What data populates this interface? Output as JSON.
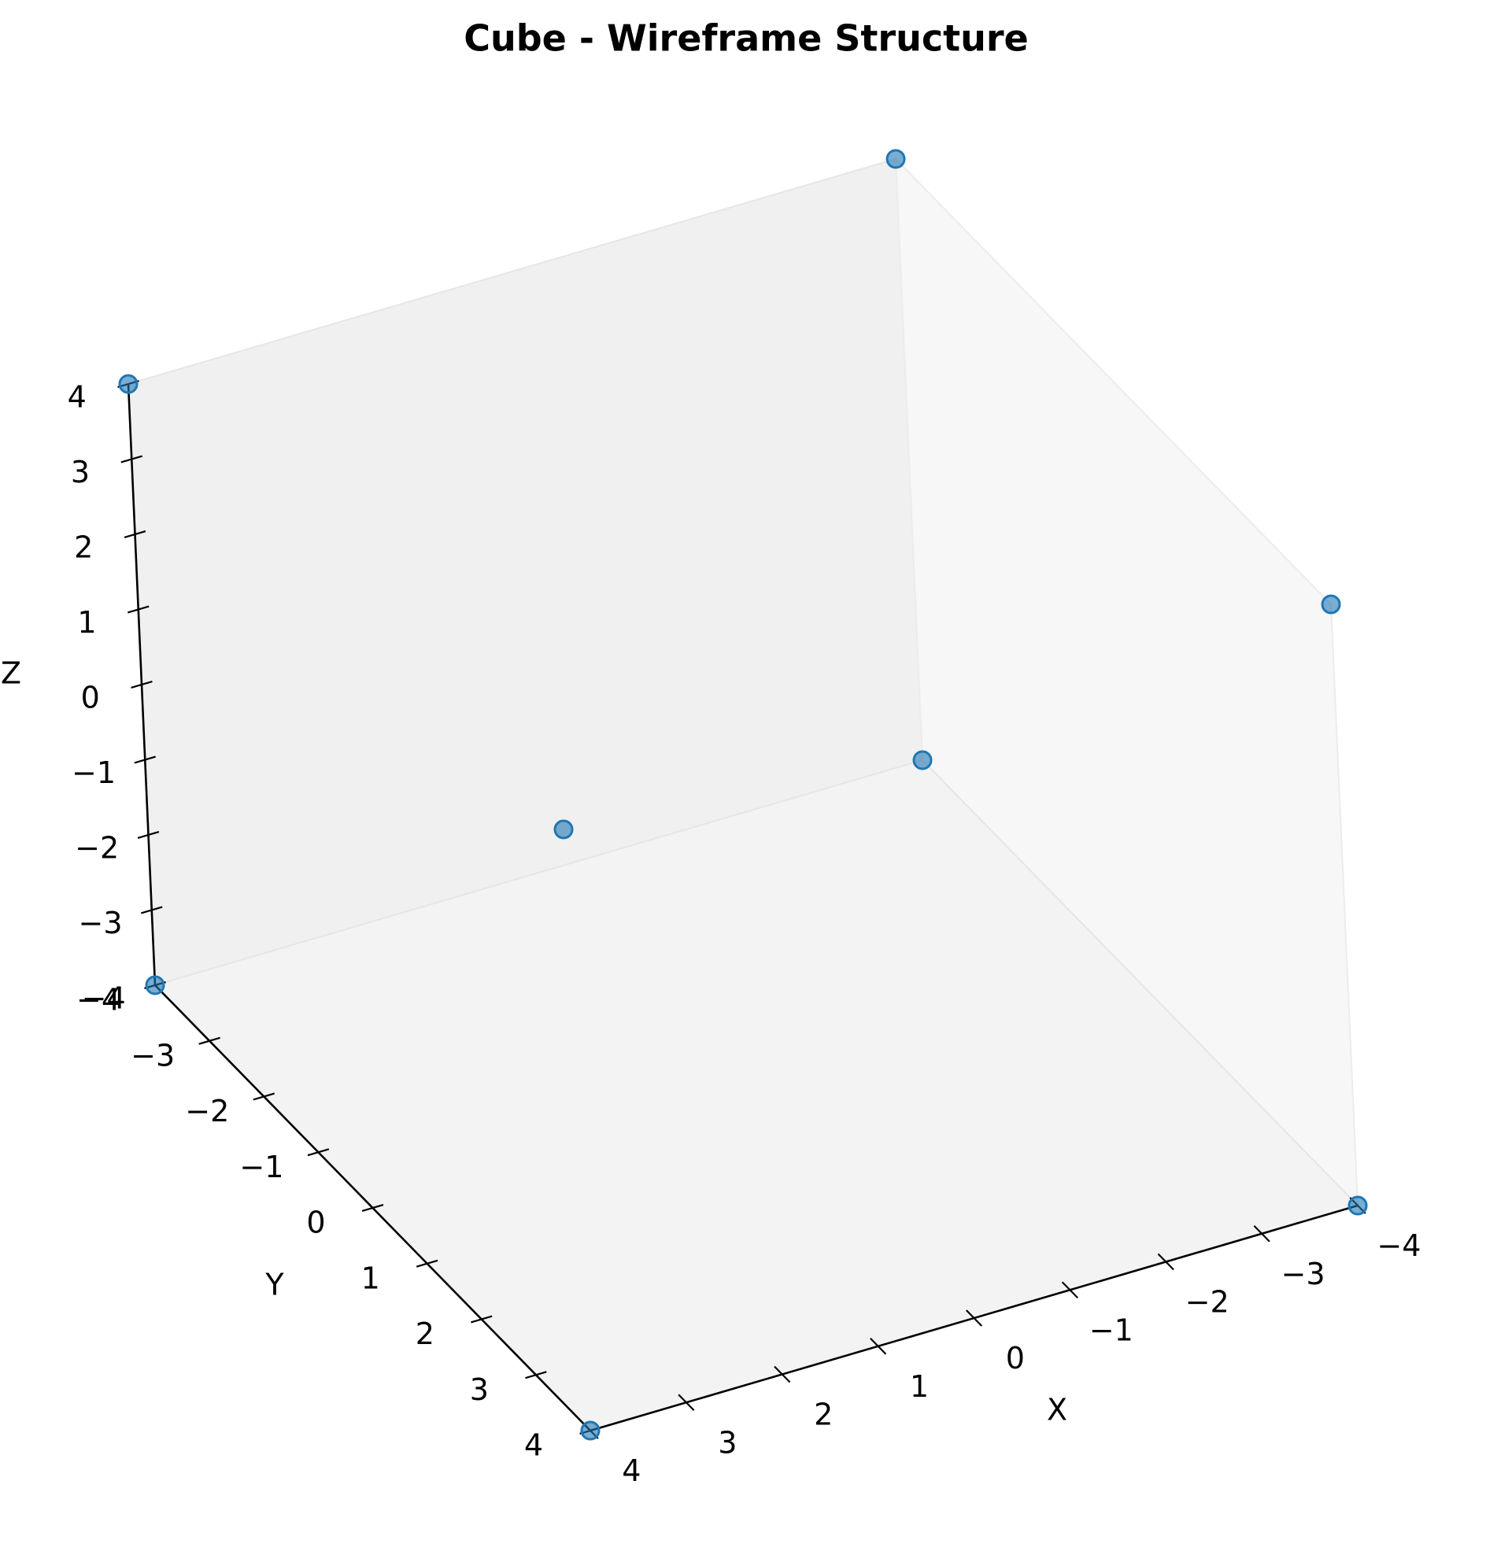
{
  "chart_data": {
    "type": "scatter",
    "projection": "3d",
    "title": "Cube - Wireframe Structure",
    "xlabel": "X",
    "ylabel": "Y",
    "zlabel": "Z",
    "xlim": [
      -4,
      4
    ],
    "ylim": [
      -4,
      4
    ],
    "zlim": [
      -4,
      4
    ],
    "xticks": [
      -4,
      -3,
      -2,
      -1,
      0,
      1,
      2,
      3,
      4
    ],
    "yticks": [
      -4,
      -3,
      -2,
      -1,
      0,
      1,
      2,
      3,
      4
    ],
    "zticks": [
      -4,
      -3,
      -2,
      -1,
      0,
      1,
      2,
      3,
      4
    ],
    "xtick_labels": [
      "−4",
      "−3",
      "−2",
      "−1",
      "0",
      "1",
      "2",
      "3",
      "4"
    ],
    "ytick_labels": [
      "−4",
      "−3",
      "−2",
      "−1",
      "0",
      "1",
      "2",
      "3",
      "4"
    ],
    "ztick_labels": [
      "−4",
      "−3",
      "−2",
      "−1",
      "0",
      "1",
      "2",
      "3",
      "4"
    ],
    "grid": false,
    "marker_color": "#1f77b4",
    "points": [
      {
        "x": -4,
        "y": -4,
        "z": 4
      },
      {
        "x": 4,
        "y": -4,
        "z": 4
      },
      {
        "x": -4,
        "y": 4,
        "z": 4
      },
      {
        "x": 4,
        "y": 4,
        "z": 4
      },
      {
        "x": -4,
        "y": -4,
        "z": -4
      },
      {
        "x": 4,
        "y": -4,
        "z": -4
      },
      {
        "x": -4,
        "y": 4,
        "z": -4
      },
      {
        "x": 4,
        "y": 4,
        "z": -4
      }
    ]
  }
}
